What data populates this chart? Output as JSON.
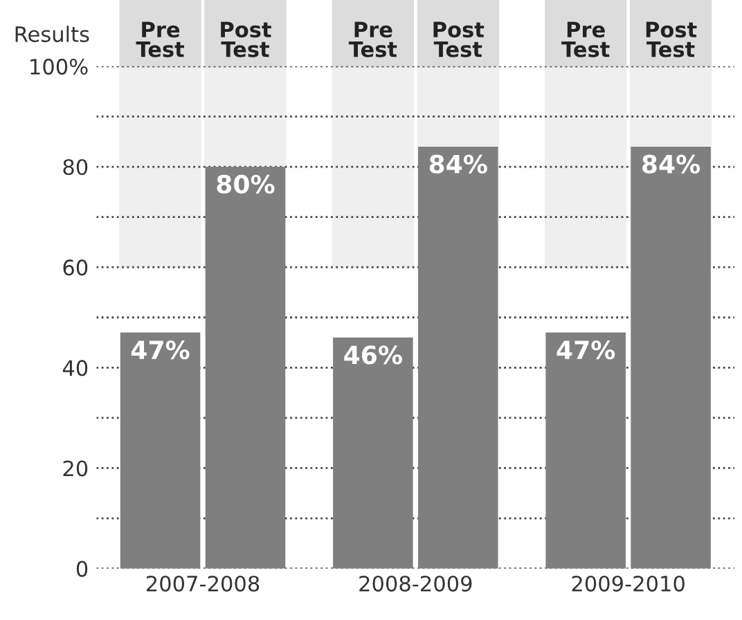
{
  "chart_data": {
    "type": "bar",
    "ylabel": "Results",
    "categories": [
      "2007-2008",
      "2008-2009",
      "2009-2010"
    ],
    "annotations": [
      "Pre Test",
      "Post Test"
    ],
    "series": [
      {
        "color": "#7f7f7f",
        "values": [
          47,
          46,
          47
        ],
        "value_labels": [
          "47%",
          "46%",
          "47%"
        ]
      },
      {
        "color": "#7f7f7f",
        "values": [
          80,
          84,
          84
        ],
        "value_labels": [
          "80%",
          "84%",
          "84%"
        ]
      }
    ],
    "ylim": [
      0,
      100
    ],
    "yticks": [
      0,
      {
        "value": 10,
        "label": null
      },
      20,
      {
        "value": 30,
        "label": null
      },
      40,
      {
        "value": 50,
        "label": null
      },
      60,
      {
        "value": 70,
        "label": null
      },
      80,
      {
        "value": 90,
        "label": null
      },
      {
        "value": 100,
        "label": "100%"
      }
    ],
    "grid": "y",
    "line_style": "dotted"
  }
}
